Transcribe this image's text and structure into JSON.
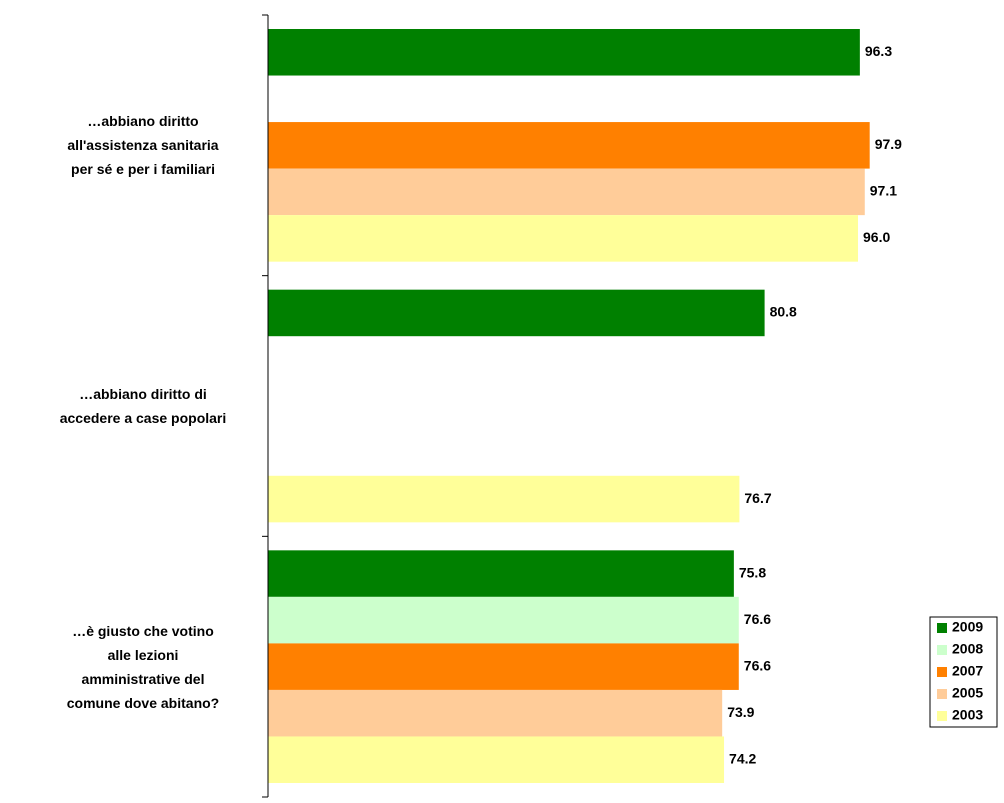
{
  "chart_data": {
    "type": "bar",
    "orientation": "horizontal",
    "categories": [
      "…abbiano diritto\nall'assistenza sanitaria\nper sé e per i familiari",
      "…abbiano diritto di\naccedere a case popolari",
      "…è giusto che votino\nalle lezioni\namministrative del\ncomune dove abitano?"
    ],
    "series": [
      {
        "name": "2009",
        "color": "#008000",
        "values": [
          96.3,
          80.8,
          75.8
        ],
        "value_labels": [
          "96.3",
          "80.8",
          "75.8"
        ]
      },
      {
        "name": "2008",
        "color": "#ccffcc",
        "values": [
          null,
          null,
          76.6
        ],
        "value_labels": [
          null,
          null,
          "76.6"
        ]
      },
      {
        "name": "2007",
        "color": "#ff8000",
        "values": [
          97.9,
          null,
          76.6
        ],
        "value_labels": [
          "97.9",
          null,
          "76.6"
        ]
      },
      {
        "name": "2005",
        "color": "#ffcc99",
        "values": [
          97.1,
          null,
          73.9
        ],
        "value_labels": [
          "97.1",
          null,
          "73.9"
        ]
      },
      {
        "name": "2003",
        "color": "#ffff99",
        "values": [
          96.0,
          76.7,
          74.2
        ],
        "value_labels": [
          "96.0",
          "76.7",
          "74.2"
        ]
      }
    ],
    "xlim": [
      0,
      100
    ],
    "legend": "bottom-right"
  }
}
